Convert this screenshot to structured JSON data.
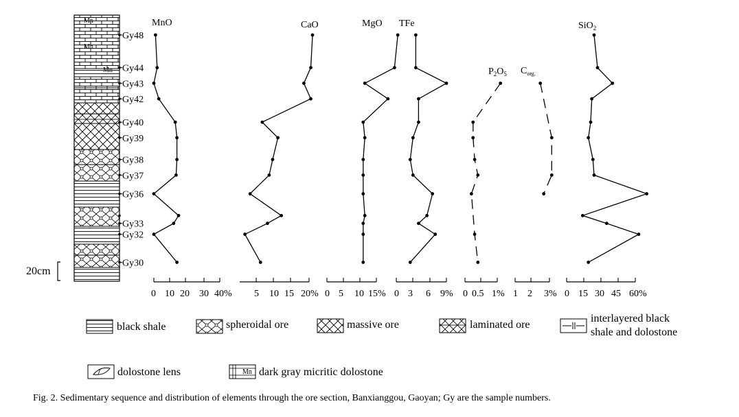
{
  "chart_data": {
    "type": "line",
    "caption": "Fig. 2. Sedimentary sequence and distribution of elements through the ore section, Banxianggou, Gaoyan; Gy are the sample numbers.",
    "scale_label": "20cm",
    "samples": [
      {
        "name": "Gy48",
        "depth": 1
      },
      {
        "name": "Gy44",
        "depth": 3.1
      },
      {
        "name": "Gy43",
        "depth": 4.1
      },
      {
        "name": "Gy42",
        "depth": 5.1
      },
      {
        "name": "Gy40",
        "depth": 6.6
      },
      {
        "name": "Gy39",
        "depth": 7.6
      },
      {
        "name": "Gy38",
        "depth": 9
      },
      {
        "name": "Gy37",
        "depth": 10
      },
      {
        "name": "Gy36",
        "depth": 11.2
      },
      {
        "name": "",
        "depth": 12.6
      },
      {
        "name": "Gy33",
        "depth": 13.1
      },
      {
        "name": "Gy32",
        "depth": 13.8
      },
      {
        "name": "Gy30",
        "depth": 15.6
      }
    ],
    "series": [
      {
        "name": "MnO",
        "name_main": "MnO",
        "name_sub": "",
        "style": "solid",
        "ticks": [
          "0",
          "10",
          "20",
          "30",
          "40%"
        ],
        "xlim": [
          0,
          40
        ],
        "depths": [
          1,
          3.1,
          4.1,
          5.1,
          6.6,
          7.6,
          9,
          10,
          11.2,
          12.6,
          13.1,
          13.8,
          15.6
        ],
        "values": [
          1,
          2,
          0,
          3,
          13,
          14,
          14,
          13.5,
          0,
          15,
          12,
          0,
          14
        ]
      },
      {
        "name": "CaO",
        "name_main": "CaO",
        "name_sub": "",
        "style": "solid",
        "ticks": [
          "5",
          "10",
          "15",
          "20%"
        ],
        "xlim": [
          0,
          20
        ],
        "depths": [
          1,
          3.1,
          4.1,
          5.1,
          6.6,
          7.6,
          9,
          10,
          11.2,
          12.6,
          13.1,
          13.8,
          15.6
        ],
        "values": [
          21,
          20.5,
          18.5,
          20.5,
          6.5,
          11,
          9.5,
          8.5,
          3,
          12,
          8,
          1.5,
          6
        ]
      },
      {
        "name": "MgO",
        "name_main": "MgO",
        "name_sub": "",
        "style": "solid",
        "ticks": [
          "0",
          "5",
          "10",
          "15%"
        ],
        "xlim": [
          0,
          15
        ],
        "depths": [
          1,
          3.1,
          4.1,
          5.1,
          6.6,
          7.6,
          9,
          10,
          11.2,
          12.6,
          13.1,
          13.8,
          15.6
        ],
        "values": [
          21.5,
          20.5,
          11.5,
          18.5,
          11,
          11.5,
          11,
          11,
          11,
          11.5,
          11,
          11,
          11
        ]
      },
      {
        "name": "TFe",
        "name_main": "TFe",
        "name_sub": "",
        "style": "solid",
        "ticks": [
          "0",
          "3",
          "6",
          "9%"
        ],
        "xlim": [
          0,
          9
        ],
        "depths": [
          1,
          3.1,
          4.1,
          5.1,
          6.6,
          7.6,
          9,
          10,
          11.2,
          12.6,
          13.1,
          13.8,
          15.6
        ],
        "values": [
          3.5,
          3.5,
          9,
          4,
          4,
          3,
          2.5,
          3,
          6.5,
          5.5,
          4,
          7,
          2.5
        ]
      },
      {
        "name": "P₂O₅",
        "name_main": "P",
        "name_sub1": "2",
        "name_mid": "O",
        "name_sub2": "5",
        "style": "dashed",
        "ticks": [
          "0",
          "0.5",
          "1%"
        ],
        "xlim": [
          0,
          1
        ],
        "depths": [
          4.1,
          6.6,
          7.6,
          9,
          10,
          11.2,
          13.8,
          15.6
        ],
        "values": [
          1.1,
          0.25,
          0.25,
          0.3,
          0.4,
          0.2,
          0.3,
          0.4
        ]
      },
      {
        "name": "Corg.",
        "name_main": "C",
        "name_sub": "org.",
        "style": "dashed",
        "ticks": [
          "1",
          "2",
          "3%"
        ],
        "xlim": [
          0,
          3
        ],
        "depths": [
          4.1,
          7.6,
          10,
          11.2
        ],
        "values": [
          2.2,
          3.2,
          3.2,
          2.5
        ]
      },
      {
        "name": "SiO₂",
        "name_main": "SiO",
        "name_sub": "2",
        "style": "solid",
        "ticks": [
          "0",
          "15",
          "30",
          "45",
          "60%"
        ],
        "xlim": [
          0,
          60
        ],
        "depths": [
          1,
          3.1,
          4.1,
          5.1,
          6.6,
          7.6,
          9,
          10,
          11.2,
          12.6,
          13.1,
          13.8,
          15.6
        ],
        "values": [
          24,
          27,
          40,
          22,
          21,
          19,
          23,
          24,
          70,
          14,
          35,
          63,
          19
        ]
      }
    ]
  },
  "legend": {
    "items": [
      {
        "id": "black-shale",
        "label": "black shale"
      },
      {
        "id": "spheroidal-ore",
        "label": "spheroidal ore"
      },
      {
        "id": "massive-ore",
        "label": "massive ore"
      },
      {
        "id": "laminated-ore",
        "label": "laminated ore"
      },
      {
        "id": "interlayered",
        "label_line1": "interlayered black",
        "label_line2": "shale and dolostone"
      },
      {
        "id": "dolostone-lens",
        "label": "dolostone lens"
      },
      {
        "id": "dark-gray-dolostone",
        "label": "dark gray micritic dolostone"
      }
    ],
    "mn_mark": "Mn"
  }
}
